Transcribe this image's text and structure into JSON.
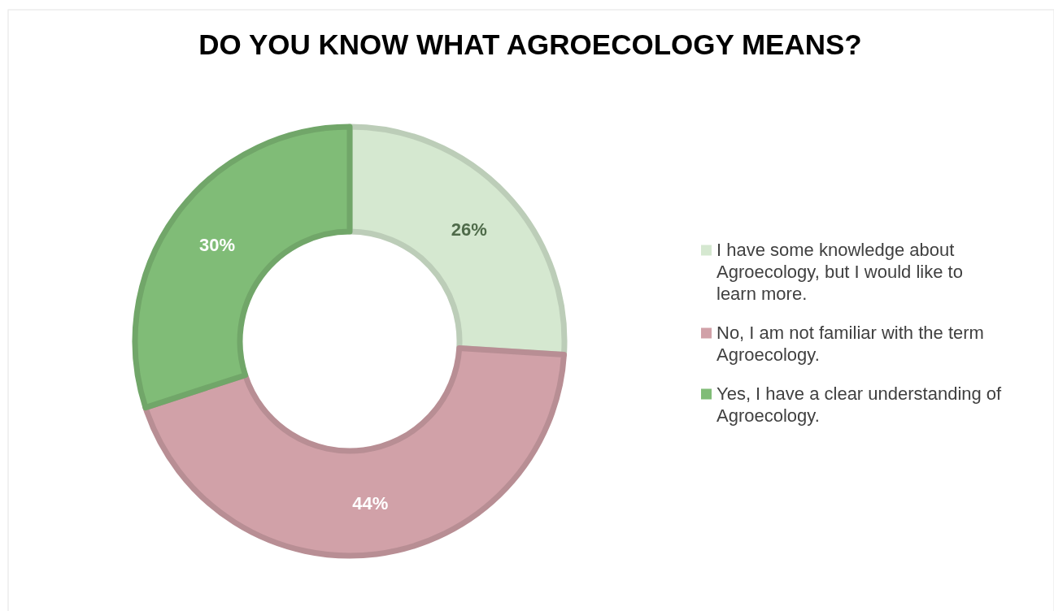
{
  "chart_data": {
    "type": "donut",
    "title": "DO YOU KNOW WHAT AGROECOLOGY MEANS?",
    "categories": [
      "I have some knowledge about Agroecology, but I would like to learn more.",
      "No, I am not familiar with the term Agroecology.",
      "Yes, I have a clear understanding of Agroecology."
    ],
    "values": [
      26,
      44,
      30
    ],
    "colors": [
      "#d5e8d0",
      "#d1a1a8",
      "#80bc77"
    ],
    "value_labels": [
      "26%",
      "44%",
      "30%"
    ],
    "legend": "right"
  }
}
